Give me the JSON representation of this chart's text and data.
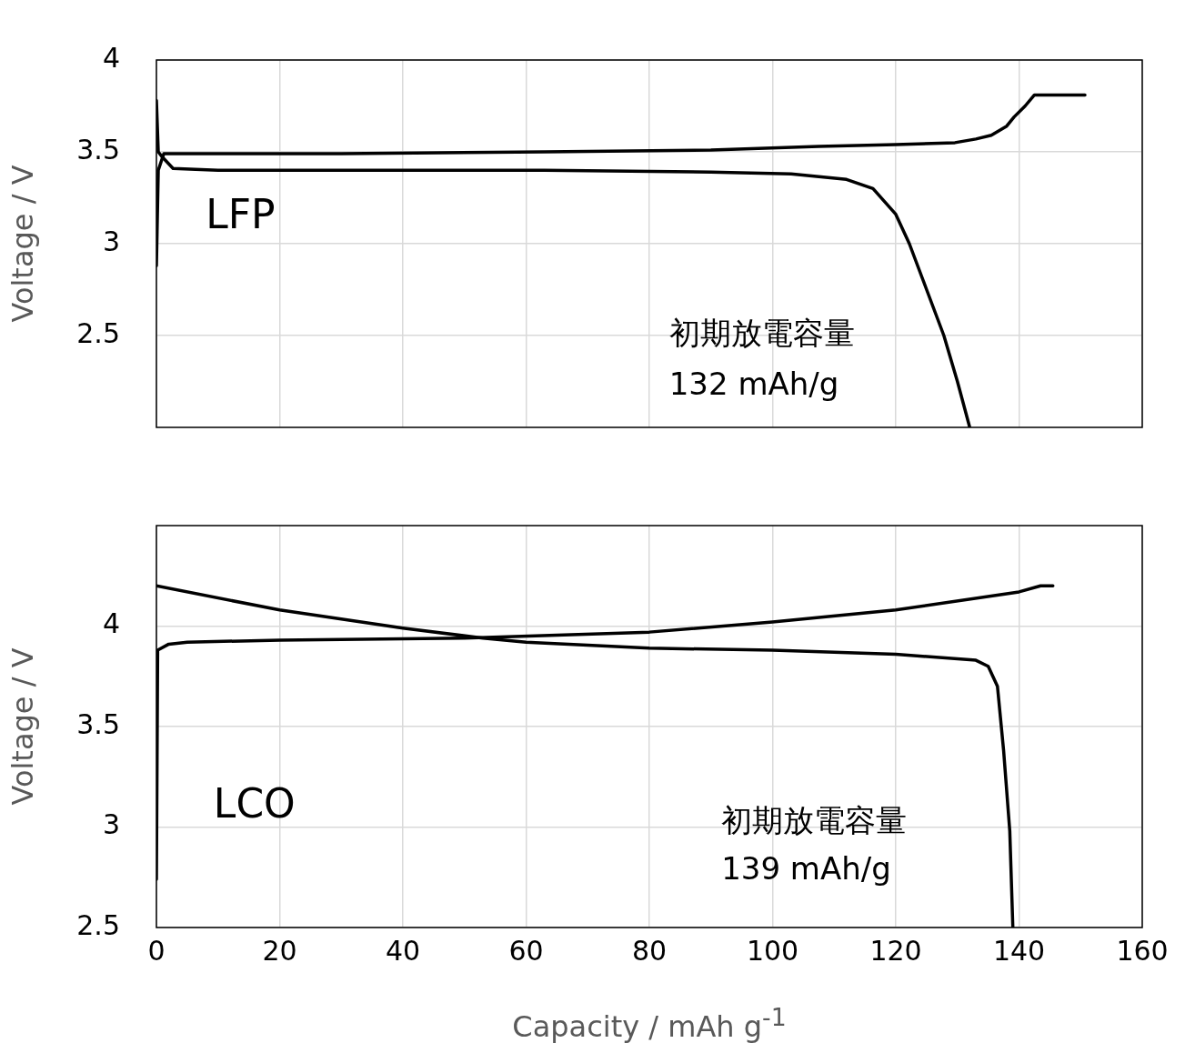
{
  "chart_data": [
    {
      "type": "line",
      "ylabel": "Voltage / V",
      "xlim": [
        0,
        160
      ],
      "xticks": [
        0,
        20,
        40,
        60,
        80,
        100,
        120,
        140,
        160
      ],
      "ylim": [
        2,
        4
      ],
      "yticks": [
        2.5,
        3,
        3.5,
        4
      ],
      "grid": true,
      "legend": false,
      "tick_labels": "y",
      "marker": "none",
      "line_style": "solid",
      "annotations": [
        "LFP",
        "初期放電容量",
        "132 mAh/g"
      ],
      "series": [
        {
          "color": "#000000",
          "x": [
            0,
            0.3,
            1.2,
            5,
            30,
            63,
            90,
            107.5,
            120,
            129.6,
            133,
            135.5,
            138,
            139.2,
            141,
            142.5,
            146,
            150.7
          ],
          "values": [
            2.88,
            3.4,
            3.49,
            3.49,
            3.49,
            3.5,
            3.51,
            3.53,
            3.54,
            3.55,
            3.57,
            3.59,
            3.64,
            3.69,
            3.75,
            3.81,
            3.81,
            3.81
          ]
        },
        {
          "color": "#000000",
          "x": [
            0,
            0.3,
            1,
            2.7,
            10,
            40,
            63,
            90,
            103,
            112,
            116.3,
            120,
            122.2,
            125,
            127.8,
            130,
            132
          ],
          "values": [
            3.78,
            3.5,
            3.47,
            3.41,
            3.4,
            3.4,
            3.4,
            3.39,
            3.38,
            3.35,
            3.3,
            3.16,
            3.0,
            2.75,
            2.5,
            2.25,
            2.0
          ]
        }
      ]
    },
    {
      "type": "line",
      "ylabel": "Voltage / V",
      "xlabel": "Capacity / mAh g$^{-1}$",
      "xlim": [
        0,
        160
      ],
      "xticks": [
        0,
        20,
        40,
        60,
        80,
        100,
        120,
        140,
        160
      ],
      "ylim": [
        2.5,
        4.5
      ],
      "yticks": [
        2.5,
        3,
        3.5,
        4
      ],
      "grid": true,
      "legend": false,
      "marker": "none",
      "line_style": "solid",
      "annotations": [
        "LCO",
        "初期放電容量",
        "139 mAh/g"
      ],
      "series": [
        {
          "color": "#000000",
          "x": [
            0,
            0.2,
            2,
            5,
            20,
            50,
            80,
            100,
            120,
            140,
            143.5,
            145.5
          ],
          "values": [
            2.74,
            3.88,
            3.91,
            3.92,
            3.93,
            3.94,
            3.97,
            4.02,
            4.08,
            4.17,
            4.2,
            4.2
          ]
        },
        {
          "color": "#000000",
          "x": [
            0,
            20,
            40,
            53,
            60,
            80,
            100,
            120,
            133,
            135,
            136.5,
            137.5,
            138.5,
            139
          ],
          "values": [
            4.2,
            4.08,
            3.99,
            3.94,
            3.92,
            3.89,
            3.88,
            3.86,
            3.83,
            3.8,
            3.7,
            3.38,
            2.98,
            2.5
          ]
        }
      ]
    }
  ]
}
